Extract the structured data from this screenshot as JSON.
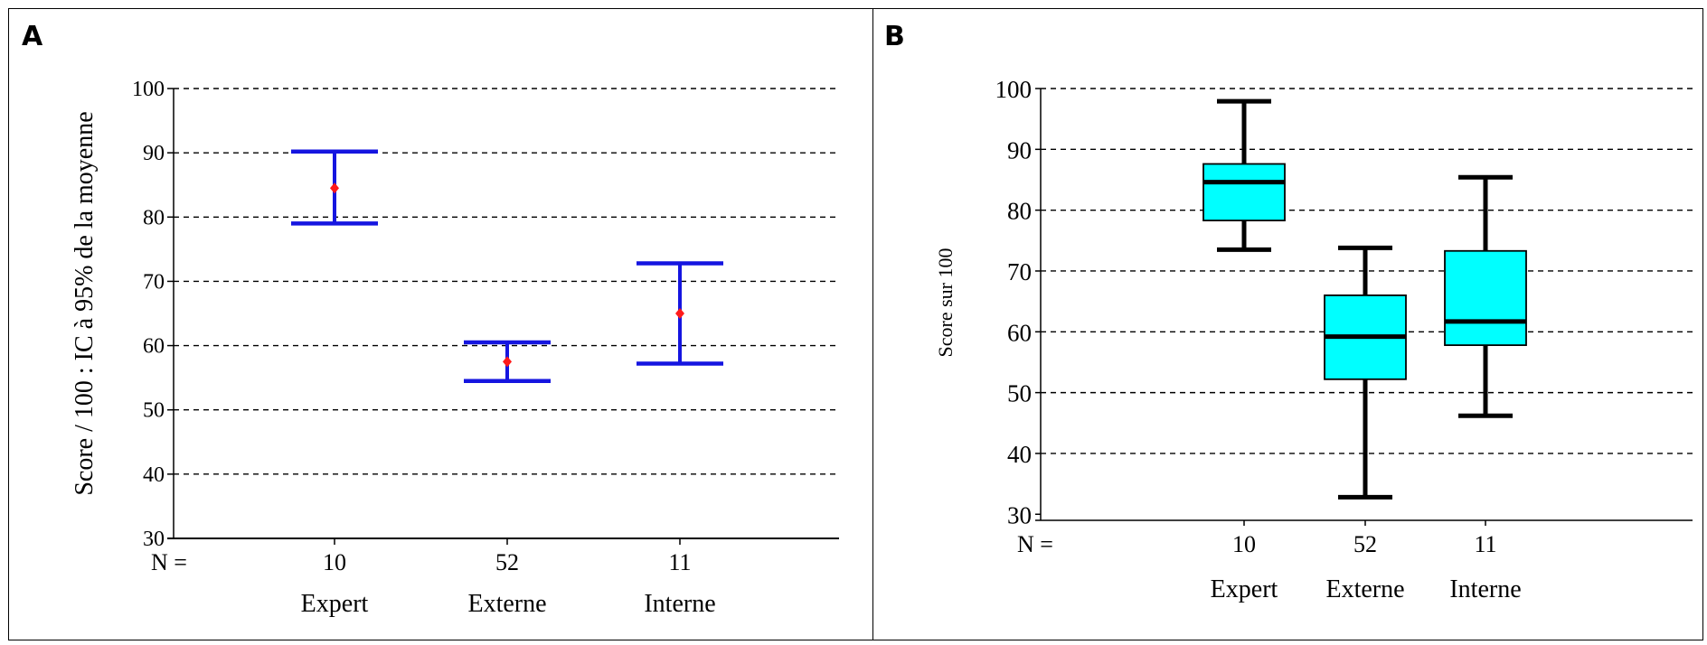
{
  "panels": {
    "a": {
      "label": "A"
    },
    "b": {
      "label": "B"
    }
  },
  "chart_data": [
    {
      "type": "errorbar",
      "panel": "A",
      "ylabel": "Score / 100 : IC à 95% de la moyenne",
      "ylim": [
        30,
        100
      ],
      "yticks": [
        30,
        40,
        50,
        60,
        70,
        80,
        90,
        100
      ],
      "grid": true,
      "n_label": "N =",
      "categories": [
        "Expert",
        "Externe",
        "Interne"
      ],
      "n": [
        "10",
        "52",
        "11"
      ],
      "mean": [
        84.5,
        57.5,
        65
      ],
      "ci_lower": [
        79,
        54.5,
        57.2
      ],
      "ci_upper": [
        90.2,
        60.5,
        72.8
      ],
      "colors": {
        "bar": "#1515e0",
        "mean": "#ff1a1a"
      }
    },
    {
      "type": "box",
      "panel": "B",
      "ylabel": "Score sur 100",
      "ylim": [
        29,
        100
      ],
      "yticks": [
        30,
        40,
        50,
        60,
        70,
        80,
        90,
        100
      ],
      "grid": true,
      "n_label": "N =",
      "categories": [
        "Expert",
        "Externe",
        "Interne"
      ],
      "n": [
        "10",
        "52",
        "11"
      ],
      "whisker_low": [
        73.5,
        32.8,
        46.2
      ],
      "q1": [
        78.3,
        52.2,
        57.8
      ],
      "median": [
        84.6,
        59.2,
        61.7
      ],
      "q3": [
        87.6,
        66,
        73.3
      ],
      "whisker_high": [
        97.9,
        73.8,
        85.4
      ],
      "colors": {
        "box": "#00ffff",
        "line": "#000000"
      }
    }
  ]
}
